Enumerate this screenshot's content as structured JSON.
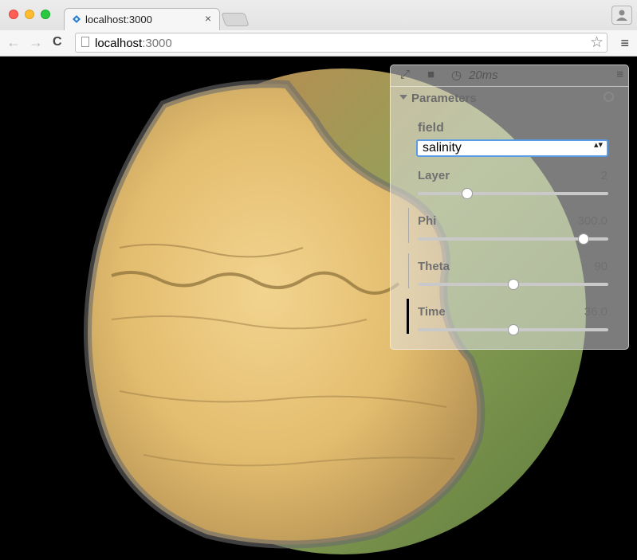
{
  "browser": {
    "tab_title": "localhost:3000",
    "tab_close": "×",
    "url_host": "localhost",
    "url_port": ":3000",
    "nav_back": "←",
    "nav_forward": "→",
    "nav_reload": "C",
    "star": "☆",
    "menu": "≡"
  },
  "gui": {
    "frame_time": "20ms",
    "fullscreen_icon": "⤢",
    "stop_icon": "■",
    "clock_icon": "◷",
    "menu_icon": "≡",
    "folder_label": "Parameters",
    "field_label": "field",
    "field_value": "salinity",
    "select_arrow": "▴▾",
    "controls": [
      {
        "label": "Layer",
        "value": "2",
        "fraction": 0.26
      },
      {
        "label": "Phi",
        "value": "300.0",
        "fraction": 0.87
      },
      {
        "label": "Theta",
        "value": "90",
        "fraction": 0.5
      },
      {
        "label": "Time",
        "value": "36.0",
        "fraction": 0.5
      }
    ]
  },
  "colors": {
    "accent": "#5a9be6",
    "ocean": "#e9c67d",
    "land": "#8ea35a",
    "close": "#fe5f57",
    "minimize": "#febc2e",
    "maximize": "#28c840"
  }
}
